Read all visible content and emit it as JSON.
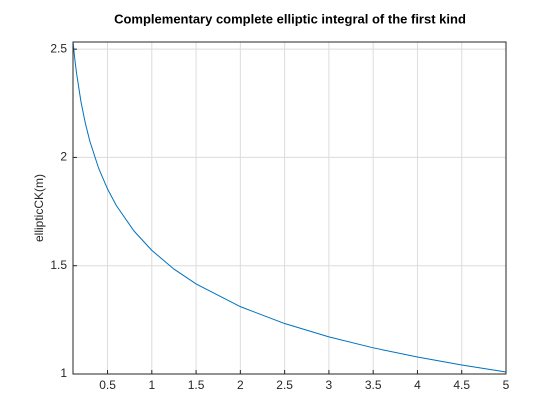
{
  "chart_data": {
    "type": "line",
    "title": "Complementary complete elliptic integral of the first kind",
    "y_label": "ellipticCK(m)",
    "x": [
      0.11,
      0.13,
      0.15,
      0.2,
      0.25,
      0.3,
      0.4,
      0.5,
      0.6,
      0.8,
      1,
      1.25,
      1.5,
      2,
      2.5,
      3,
      3.5,
      4,
      4.5,
      5
    ],
    "series": [
      {
        "color": "#0072bd",
        "values": [
          2.5333,
          2.4553,
          2.389,
          2.2572,
          2.1565,
          2.0754,
          1.9496,
          1.8541,
          1.7775,
          1.6596,
          1.5708,
          1.4844,
          1.4157,
          1.311,
          1.233,
          1.1714,
          1.1209,
          1.0783,
          1.0416,
          1.0094
        ]
      }
    ],
    "xlim": [
      0.11,
      5
    ],
    "ylim": [
      1,
      2.533
    ],
    "xticks": [
      0.5,
      1,
      1.5,
      2,
      2.5,
      3,
      3.5,
      4,
      4.5,
      5
    ],
    "yticks": [
      1,
      1.5,
      2,
      2.5
    ],
    "grid": true
  }
}
